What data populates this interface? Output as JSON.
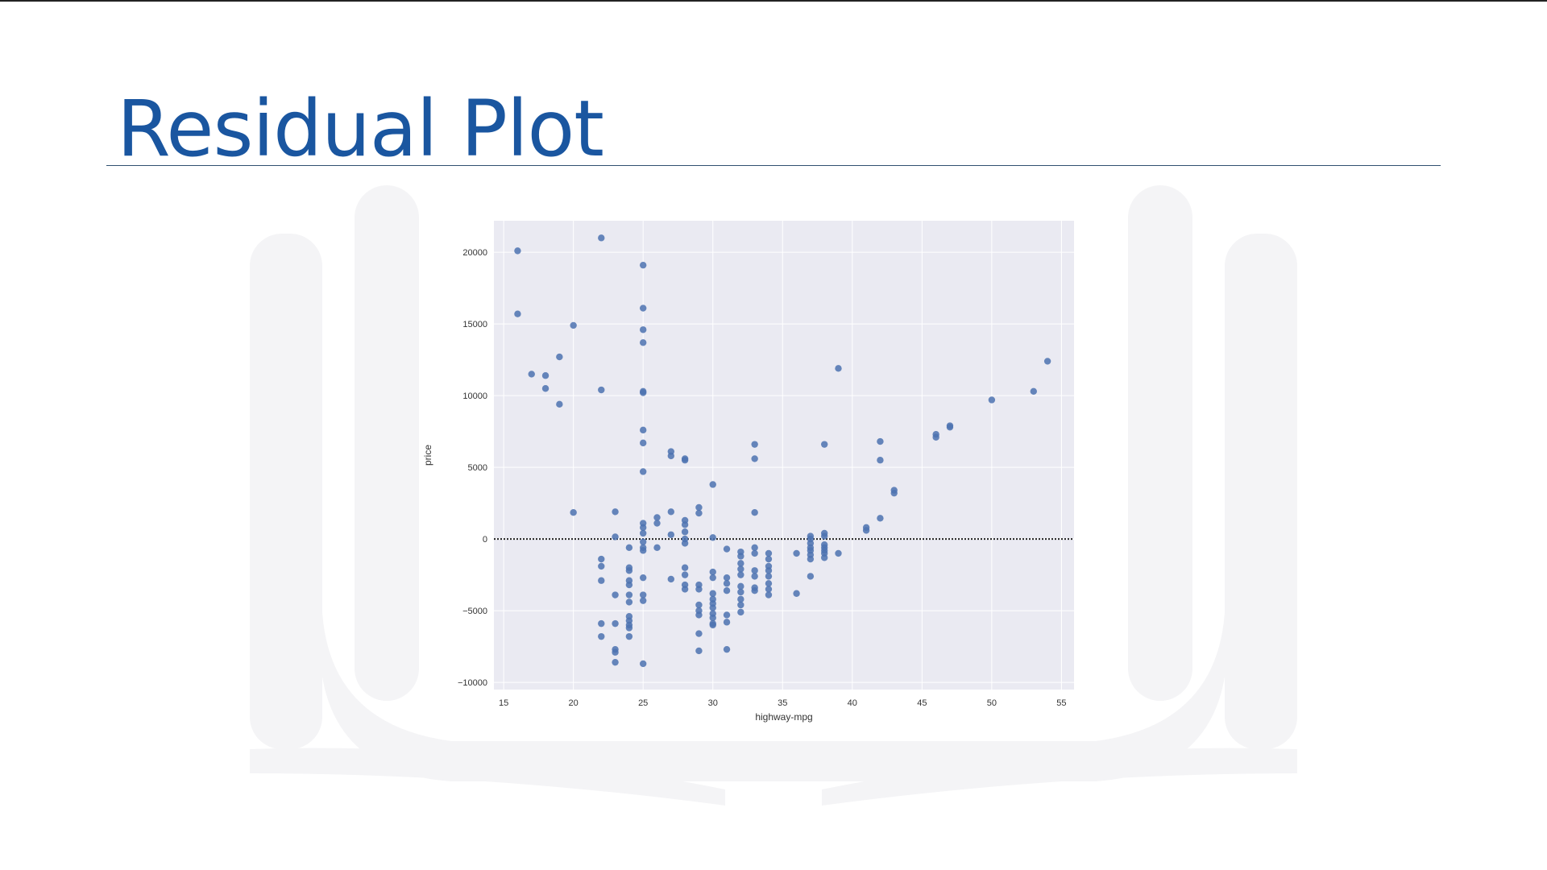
{
  "slide": {
    "title": "Residual Plot"
  },
  "colors": {
    "title": "#1a56a0",
    "plot_background": "#eaeaf2",
    "grid": "#ffffff",
    "points": "#4c72b0",
    "zero_line": "#222222"
  },
  "chart_data": {
    "type": "scatter",
    "xlabel": "highway-mpg",
    "ylabel": "price",
    "xlim": [
      14.3,
      55.9
    ],
    "ylim": [
      -10500,
      22200
    ],
    "x_ticks": [
      15,
      20,
      25,
      30,
      35,
      40,
      45,
      50,
      55
    ],
    "y_ticks": [
      -10000,
      -5000,
      0,
      5000,
      10000,
      15000,
      20000
    ],
    "grid": true,
    "zero_line": 0,
    "points": [
      [
        16,
        20100
      ],
      [
        16,
        15700
      ],
      [
        17,
        11500
      ],
      [
        18,
        11400
      ],
      [
        18,
        10500
      ],
      [
        19,
        12700
      ],
      [
        19,
        9400
      ],
      [
        20,
        14900
      ],
      [
        20,
        1850
      ],
      [
        22,
        21000
      ],
      [
        22,
        10400
      ],
      [
        22,
        -1400
      ],
      [
        22,
        -1900
      ],
      [
        22,
        -2900
      ],
      [
        22,
        -5900
      ],
      [
        22,
        -6800
      ],
      [
        23,
        1900
      ],
      [
        23,
        150
      ],
      [
        23,
        -3900
      ],
      [
        23,
        -5900
      ],
      [
        23,
        -7700
      ],
      [
        23,
        -7900
      ],
      [
        23,
        -8600
      ],
      [
        24,
        -600
      ],
      [
        24,
        -2000
      ],
      [
        24,
        -2200
      ],
      [
        24,
        -2900
      ],
      [
        24,
        -3200
      ],
      [
        24,
        -3900
      ],
      [
        24,
        -4400
      ],
      [
        24,
        -5400
      ],
      [
        24,
        -5700
      ],
      [
        24,
        -6000
      ],
      [
        24,
        -6200
      ],
      [
        24,
        -6800
      ],
      [
        25,
        19100
      ],
      [
        25,
        16100
      ],
      [
        25,
        14600
      ],
      [
        25,
        13700
      ],
      [
        25,
        10300
      ],
      [
        25,
        10200
      ],
      [
        25,
        7600
      ],
      [
        25,
        6700
      ],
      [
        25,
        4700
      ],
      [
        25,
        1100
      ],
      [
        25,
        800
      ],
      [
        25,
        400
      ],
      [
        25,
        -200
      ],
      [
        25,
        -600
      ],
      [
        25,
        -800
      ],
      [
        25,
        -2700
      ],
      [
        25,
        -3900
      ],
      [
        25,
        -4300
      ],
      [
        25,
        -8700
      ],
      [
        26,
        1500
      ],
      [
        26,
        1100
      ],
      [
        26,
        -600
      ],
      [
        27,
        6100
      ],
      [
        27,
        5800
      ],
      [
        27,
        1900
      ],
      [
        27,
        300
      ],
      [
        27,
        -2800
      ],
      [
        28,
        5600
      ],
      [
        28,
        5500
      ],
      [
        28,
        1300
      ],
      [
        28,
        1000
      ],
      [
        28,
        500
      ],
      [
        28,
        0
      ],
      [
        28,
        -300
      ],
      [
        28,
        -2000
      ],
      [
        28,
        -2500
      ],
      [
        28,
        -3200
      ],
      [
        28,
        -3500
      ],
      [
        29,
        2200
      ],
      [
        29,
        1800
      ],
      [
        29,
        -3200
      ],
      [
        29,
        -3500
      ],
      [
        29,
        -4600
      ],
      [
        29,
        -5000
      ],
      [
        29,
        -5300
      ],
      [
        29,
        -6600
      ],
      [
        29,
        -7800
      ],
      [
        30,
        3800
      ],
      [
        30,
        100
      ],
      [
        30,
        -2300
      ],
      [
        30,
        -2700
      ],
      [
        30,
        -3800
      ],
      [
        30,
        -4200
      ],
      [
        30,
        -4500
      ],
      [
        30,
        -4800
      ],
      [
        30,
        -5200
      ],
      [
        30,
        -5500
      ],
      [
        30,
        -5900
      ],
      [
        30,
        -6000
      ],
      [
        31,
        -700
      ],
      [
        31,
        -2700
      ],
      [
        31,
        -3100
      ],
      [
        31,
        -3600
      ],
      [
        31,
        -5300
      ],
      [
        31,
        -5800
      ],
      [
        31,
        -7700
      ],
      [
        32,
        -900
      ],
      [
        32,
        -1200
      ],
      [
        32,
        -1700
      ],
      [
        32,
        -2100
      ],
      [
        32,
        -2500
      ],
      [
        32,
        -3300
      ],
      [
        32,
        -3700
      ],
      [
        32,
        -4200
      ],
      [
        32,
        -4600
      ],
      [
        32,
        -5100
      ],
      [
        33,
        6600
      ],
      [
        33,
        5600
      ],
      [
        33,
        1850
      ],
      [
        33,
        -600
      ],
      [
        33,
        -1000
      ],
      [
        33,
        -2200
      ],
      [
        33,
        -2600
      ],
      [
        33,
        -3400
      ],
      [
        33,
        -3600
      ],
      [
        34,
        -1000
      ],
      [
        34,
        -1400
      ],
      [
        34,
        -1900
      ],
      [
        34,
        -2200
      ],
      [
        34,
        -2600
      ],
      [
        34,
        -3100
      ],
      [
        34,
        -3500
      ],
      [
        34,
        -3900
      ],
      [
        36,
        -1000
      ],
      [
        36,
        -3800
      ],
      [
        37,
        200
      ],
      [
        37,
        0
      ],
      [
        37,
        -300
      ],
      [
        37,
        -600
      ],
      [
        37,
        -800
      ],
      [
        37,
        -1100
      ],
      [
        37,
        -1400
      ],
      [
        37,
        -2600
      ],
      [
        38,
        6600
      ],
      [
        38,
        400
      ],
      [
        38,
        200
      ],
      [
        38,
        -400
      ],
      [
        38,
        -600
      ],
      [
        38,
        -800
      ],
      [
        38,
        -1000
      ],
      [
        38,
        -1300
      ],
      [
        39,
        11900
      ],
      [
        39,
        -1000
      ],
      [
        41,
        800
      ],
      [
        41,
        600
      ],
      [
        42,
        6800
      ],
      [
        42,
        5500
      ],
      [
        42,
        1450
      ],
      [
        43,
        3400
      ],
      [
        43,
        3200
      ],
      [
        46,
        7300
      ],
      [
        46,
        7100
      ],
      [
        47,
        7900
      ],
      [
        47,
        7800
      ],
      [
        50,
        9700
      ],
      [
        53,
        10300
      ],
      [
        54,
        12400
      ]
    ]
  }
}
